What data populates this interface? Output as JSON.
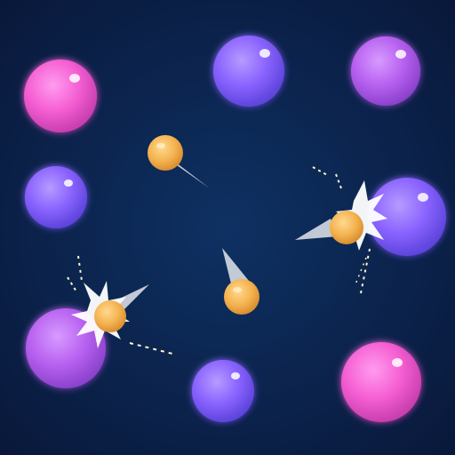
{
  "game": {
    "scene": "bubble-bounce",
    "background": {
      "center_color": "#0e3163",
      "edge_color": "#09183a"
    },
    "palette": {
      "pink": {
        "base": "#f55fd3",
        "light": "#ff9cee",
        "dark": "#c93fb0"
      },
      "violet": {
        "base": "#8a63ff",
        "light": "#b79bff",
        "dark": "#5e45dc"
      },
      "lilac": {
        "base": "#b861f0",
        "light": "#d69bff",
        "dark": "#8c43cc"
      },
      "ball": {
        "base": "#f4b24f",
        "light": "#ffd98f",
        "dark": "#d98f30"
      },
      "spark": "#ffffff"
    },
    "bubbles": [
      {
        "id": "bubble-top-left",
        "color": "pink"
      },
      {
        "id": "bubble-top-center",
        "color": "violet"
      },
      {
        "id": "bubble-top-right",
        "color": "lilac"
      },
      {
        "id": "bubble-mid-left",
        "color": "violet"
      },
      {
        "id": "bubble-mid-right",
        "color": "violet"
      },
      {
        "id": "bubble-bottom-left",
        "color": "lilac"
      },
      {
        "id": "bubble-bottom-center",
        "color": "violet"
      },
      {
        "id": "bubble-bottom-right",
        "color": "pink"
      }
    ],
    "balls": [
      {
        "id": "ball-top-left"
      },
      {
        "id": "ball-right-impact",
        "impact": true
      },
      {
        "id": "ball-center"
      },
      {
        "id": "ball-left-impact",
        "impact": true
      }
    ]
  }
}
